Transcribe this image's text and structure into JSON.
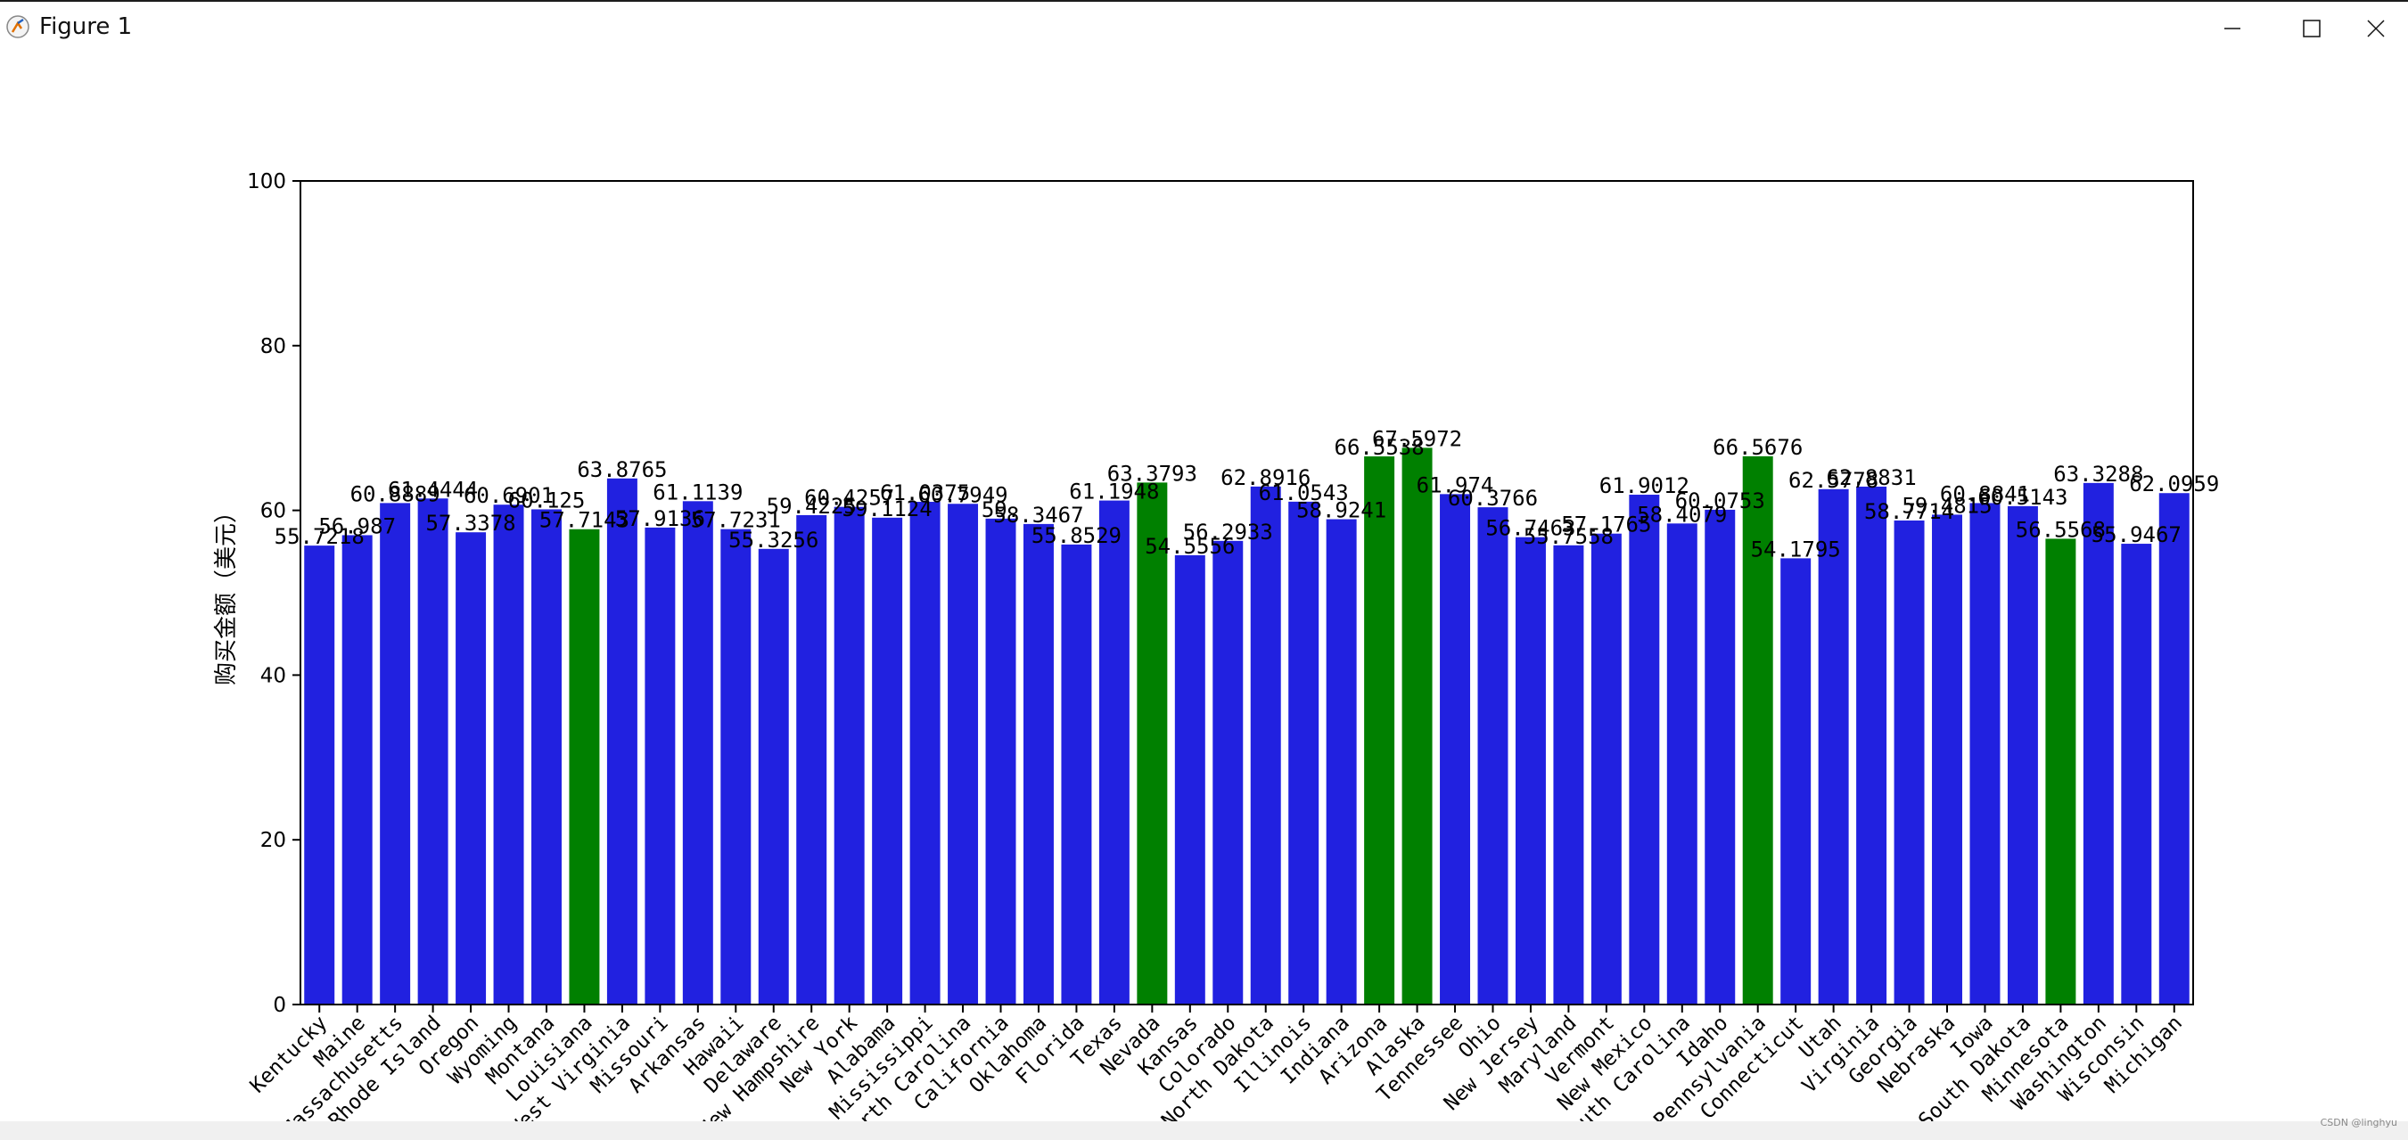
{
  "window": {
    "title": "Figure 1",
    "watermark": "CSDN @linghyu"
  },
  "colors": {
    "bar_default": "#2121e0",
    "bar_highlight": "#008000"
  },
  "chart_data": {
    "type": "bar",
    "title": "",
    "xlabel": "",
    "ylabel": "购买金额（美元）",
    "ylim": [
      0,
      100
    ],
    "yticks": [
      0,
      20,
      40,
      60,
      80,
      100
    ],
    "grid": false,
    "categories": [
      "Kentucky",
      "Maine",
      "Massachusetts",
      "Rhode Island",
      "Oregon",
      "Wyoming",
      "Montana",
      "Louisiana",
      "West Virginia",
      "Missouri",
      "Arkansas",
      "Hawaii",
      "Delaware",
      "New Hampshire",
      "New York",
      "Alabama",
      "Mississippi",
      "North Carolina",
      "California",
      "Oklahoma",
      "Florida",
      "Texas",
      "Nevada",
      "Kansas",
      "Colorado",
      "North Dakota",
      "Illinois",
      "Indiana",
      "Arizona",
      "Alaska",
      "Tennessee",
      "Ohio",
      "New Jersey",
      "Maryland",
      "Vermont",
      "New Mexico",
      "South Carolina",
      "Idaho",
      "Pennsylvania",
      "Connecticut",
      "Utah",
      "Virginia",
      "Georgia",
      "Nebraska",
      "Iowa",
      "South Dakota",
      "Minnesota",
      "Washington",
      "Wisconsin",
      "Michigan"
    ],
    "values": [
      55.7218,
      56.987,
      60.8889,
      61.4444,
      57.3378,
      60.6901,
      60.125,
      57.7143,
      63.8765,
      57.9136,
      61.1139,
      57.7231,
      55.3256,
      59.4225,
      60.4257,
      59.1124,
      61.0375,
      60.7949,
      59.0,
      58.3467,
      55.8529,
      61.1948,
      63.3793,
      54.5556,
      56.2933,
      62.8916,
      61.0543,
      58.9241,
      66.5538,
      67.5972,
      61.974,
      60.3766,
      56.7463,
      55.7558,
      57.1765,
      61.9012,
      58.4079,
      60.0753,
      66.5676,
      54.1795,
      62.5778,
      62.8831,
      58.7714,
      59.4815,
      60.8841,
      60.5143,
      56.5568,
      63.3288,
      55.9467,
      62.0959
    ],
    "labels": [
      "55.7218",
      "56.987",
      "60.8889",
      "61.4444",
      "57.3378",
      "60.6901",
      "60.125",
      "57.7143",
      "63.8765",
      "57.9136",
      "61.1139",
      "57.7231",
      "55.3256",
      "59.4225",
      "60.4257",
      "59.1124",
      "61.0375",
      "60.7949",
      "59.",
      "58.3467",
      "55.8529",
      "61.1948",
      "63.3793",
      "54.5556",
      "56.2933",
      "62.8916",
      "61.0543",
      "58.9241",
      "66.5538",
      "67.5972",
      "61.974",
      "60.3766",
      "56.7463",
      "55.7558",
      "57.1765",
      "61.9012",
      "58.4079",
      "60.0753",
      "66.5676",
      "54.1795",
      "62.5778",
      "62.8831",
      "58.7714",
      "59.4815",
      "60.8841",
      "60.5143",
      "56.5568",
      "63.3288",
      "55.9467",
      "62.0959"
    ],
    "highlight": [
      "Louisiana",
      "Nevada",
      "Arizona",
      "Alaska",
      "Pennsylvania",
      "Minnesota"
    ]
  }
}
